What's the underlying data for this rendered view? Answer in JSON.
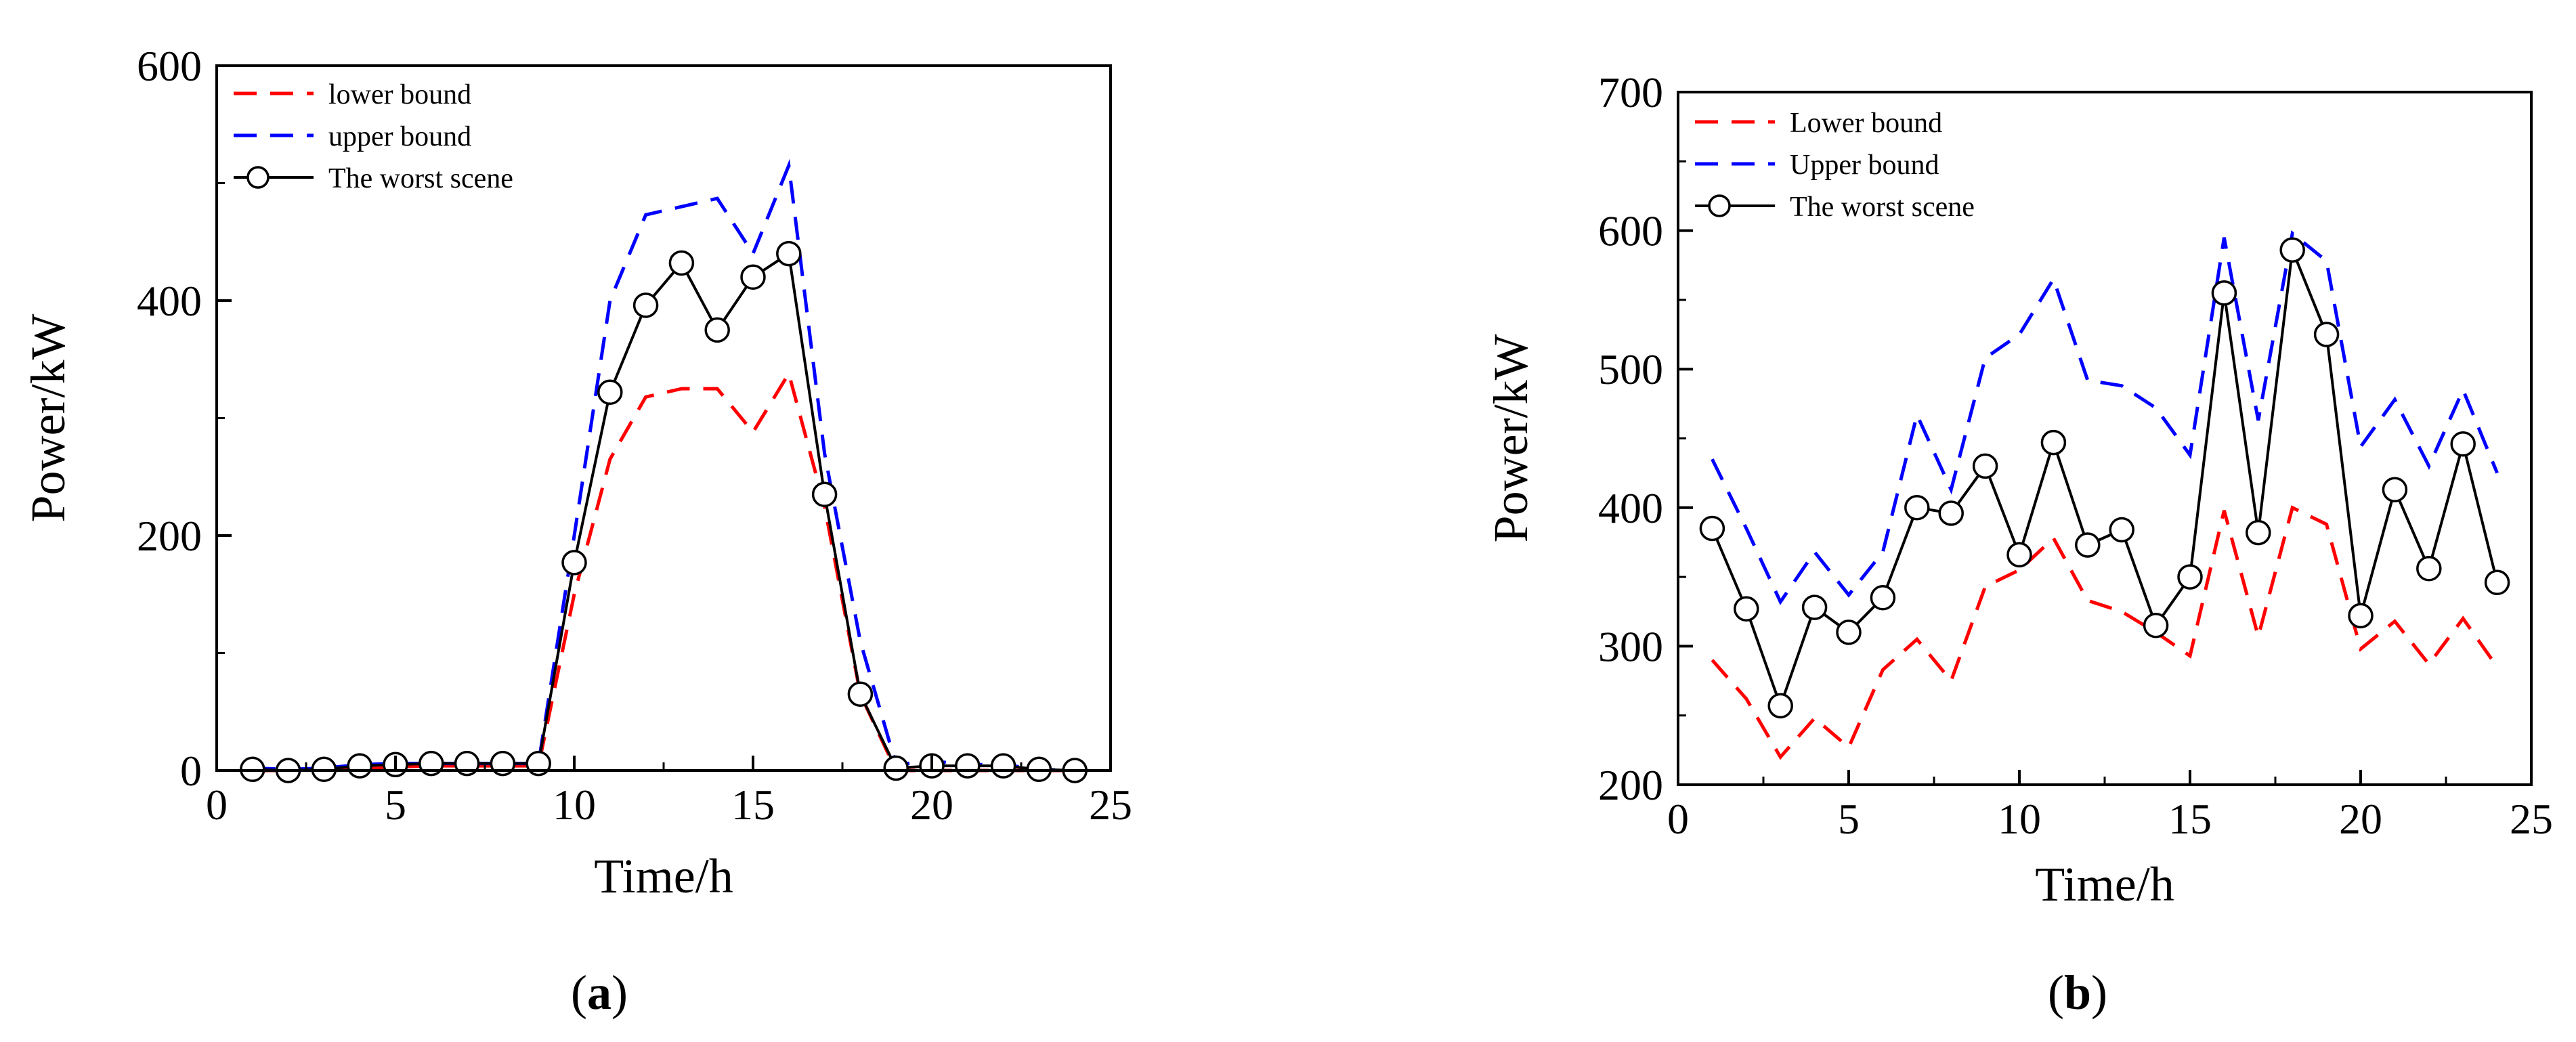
{
  "chart_data": [
    {
      "type": "line",
      "panel_label": "a",
      "xlabel": "Time/h",
      "ylabel": "Power/kW",
      "xlim": [
        0,
        25
      ],
      "ylim": [
        0,
        600
      ],
      "xticks": [
        0,
        5,
        10,
        15,
        20,
        25
      ],
      "yticks": [
        0,
        200,
        400,
        600
      ],
      "grid": false,
      "legend": "top-left",
      "x": [
        1,
        2,
        3,
        4,
        5,
        6,
        7,
        8,
        9,
        10,
        11,
        12,
        13,
        14,
        15,
        16,
        17,
        18,
        19,
        20,
        21,
        22,
        23,
        24
      ],
      "series": [
        {
          "name": "lower bound",
          "style": "dashed",
          "color": "#ff0000",
          "values": [
            0,
            0,
            1,
            2,
            3,
            4,
            4,
            4,
            4,
            150,
            265,
            318,
            325,
            325,
            288,
            338,
            225,
            65,
            0,
            0,
            0,
            0,
            0,
            0
          ]
        },
        {
          "name": "upper bound",
          "style": "dashed",
          "color": "#0000ff",
          "values": [
            2,
            1,
            2,
            5,
            6,
            6,
            6,
            6,
            6,
            200,
            400,
            473,
            480,
            487,
            440,
            515,
            270,
            110,
            5,
            8,
            5,
            5,
            1,
            0
          ]
        },
        {
          "name": "The worst scene",
          "style": "solid-circle",
          "color": "#000000",
          "values": [
            1,
            0,
            1,
            4,
            5,
            6,
            6,
            6,
            6,
            177,
            322,
            396,
            432,
            375,
            420,
            440,
            235,
            65,
            2,
            4,
            4,
            4,
            1,
            0
          ]
        }
      ]
    },
    {
      "type": "line",
      "panel_label": "b",
      "xlabel": "Time/h",
      "ylabel": "Power/kW",
      "xlim": [
        0,
        25
      ],
      "ylim": [
        200,
        700
      ],
      "xticks": [
        0,
        5,
        10,
        15,
        20,
        25
      ],
      "yticks": [
        200,
        300,
        400,
        500,
        600,
        700
      ],
      "grid": false,
      "legend": "top-left",
      "x": [
        1,
        2,
        3,
        4,
        5,
        6,
        7,
        8,
        9,
        10,
        11,
        12,
        13,
        14,
        15,
        16,
        17,
        18,
        19,
        20,
        21,
        22,
        23,
        24
      ],
      "series": [
        {
          "name": "Lower bound",
          "style": "dashed",
          "color": "#ff0000",
          "values": [
            290,
            262,
            220,
            248,
            227,
            283,
            305,
            275,
            343,
            355,
            378,
            333,
            325,
            310,
            293,
            398,
            307,
            400,
            388,
            298,
            318,
            287,
            320,
            285
          ]
        },
        {
          "name": "Upper bound",
          "style": "dashed",
          "color": "#0000ff",
          "values": [
            435,
            385,
            332,
            368,
            337,
            368,
            467,
            413,
            508,
            525,
            565,
            492,
            488,
            472,
            438,
            595,
            463,
            598,
            578,
            444,
            478,
            430,
            485,
            425
          ]
        },
        {
          "name": "The worst scene",
          "style": "solid-circle",
          "color": "#000000",
          "values": [
            385,
            327,
            257,
            328,
            310,
            335,
            400,
            396,
            430,
            366,
            447,
            373,
            384,
            315,
            350,
            555,
            382,
            586,
            525,
            322,
            413,
            356,
            446,
            346
          ]
        }
      ]
    }
  ]
}
